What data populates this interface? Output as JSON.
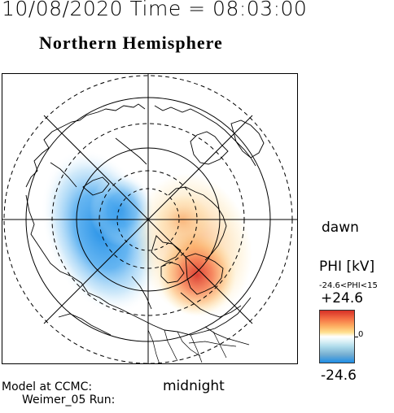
{
  "header": {
    "datetime": "10/08/2020 Time = 08:03:00",
    "hemisphere": "Northern Hemisphere"
  },
  "labels": {
    "dawn": "dawn",
    "midnight": "midnight",
    "model_line1": "Model at CCMC:",
    "model_line2": "Weimer_05 Run:"
  },
  "colorbar": {
    "title": "PHI [kV]",
    "range_text": "-24.6<PHI<15",
    "max_label": "+24.6",
    "zero_label": "0",
    "min_label": "-24.6",
    "max_color": "#d73027",
    "mid_color": "#ffffff",
    "min_color": "#1f8ee6"
  }
}
